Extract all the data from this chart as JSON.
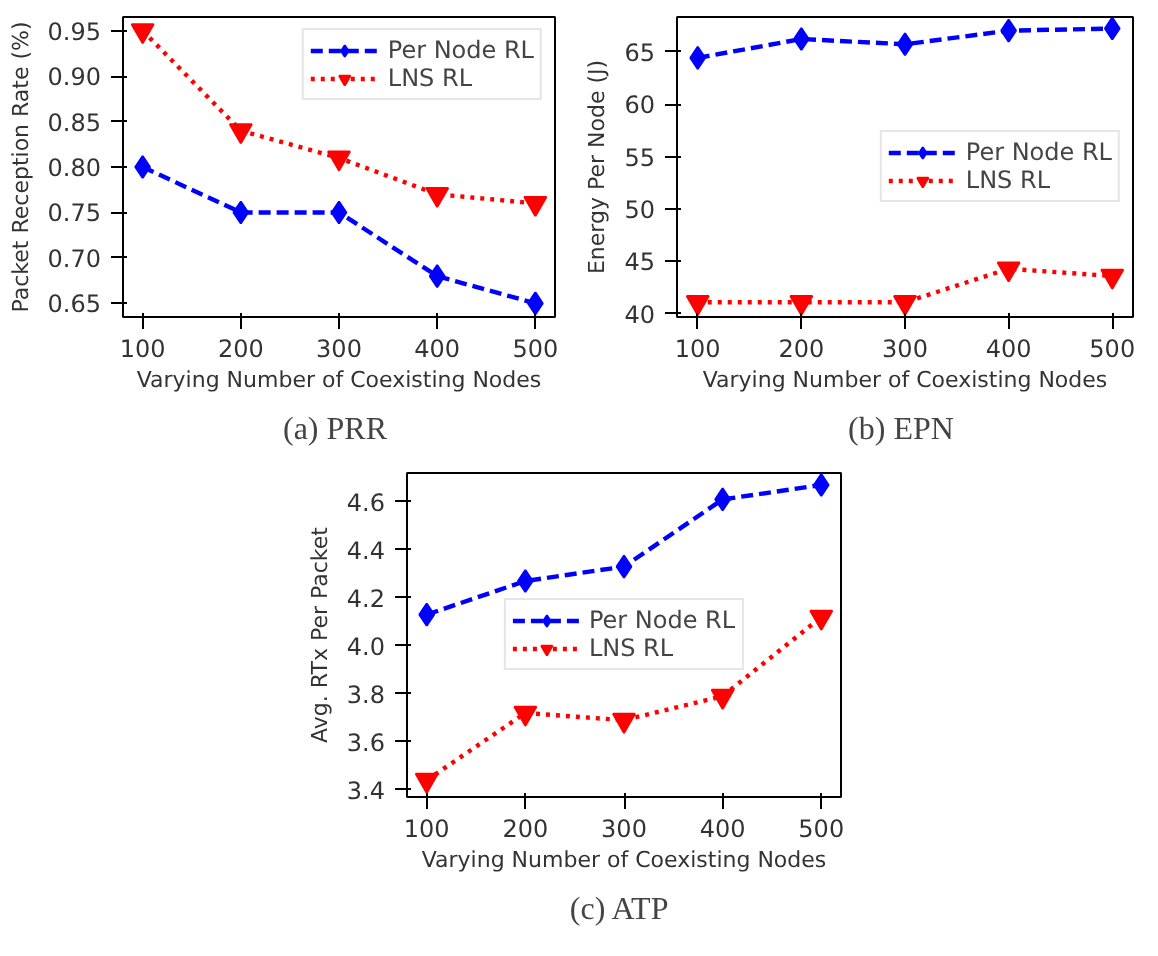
{
  "chart_data": [
    {
      "type": "line",
      "title": "(a)  PRR",
      "xlabel": "Varying Number of Coexisting Nodes",
      "ylabel": "Packet Reception Rate (%)",
      "x": [
        100,
        200,
        300,
        400,
        500
      ],
      "xlim": [
        80,
        520
      ],
      "xticks": [
        100,
        200,
        300,
        400,
        500
      ],
      "ylim": [
        0.635,
        0.965
      ],
      "yticks": [
        {
          "value": 0.65,
          "label": "0.65"
        },
        {
          "value": 0.7,
          "label": "0.70"
        },
        {
          "value": 0.75,
          "label": "0.75"
        },
        {
          "value": 0.8,
          "label": "0.80"
        },
        {
          "value": 0.85,
          "label": "0.85"
        },
        {
          "value": 0.9,
          "label": "0.90"
        },
        {
          "value": 0.95,
          "label": "0.95"
        }
      ],
      "legend": "top right",
      "grid": false,
      "series": [
        {
          "name": "Per Node RL",
          "color": "#0000ff",
          "marker": "diamond",
          "line_style": "dashed",
          "values": [
            0.8,
            0.75,
            0.75,
            0.68,
            0.65
          ]
        },
        {
          "name": "LNS RL",
          "color": "#ff0000",
          "marker": "triangle",
          "line_style": "dotted",
          "values": [
            0.95,
            0.84,
            0.81,
            0.77,
            0.76
          ]
        }
      ]
    },
    {
      "type": "line",
      "title": "(b)  EPN",
      "xlabel": "Varying Number of Coexisting Nodes",
      "ylabel": "Energy Per Node (J)",
      "x": [
        100,
        200,
        300,
        400,
        500
      ],
      "xlim": [
        80,
        520
      ],
      "xticks": [
        100,
        200,
        300,
        400,
        500
      ],
      "ylim": [
        39.7,
        68.3
      ],
      "yticks": [
        40,
        45,
        50,
        55,
        60,
        65
      ],
      "legend": "right",
      "grid": false,
      "series": [
        {
          "name": "Per Node RL",
          "color": "#0000ff",
          "marker": "diamond",
          "line_style": "dashed",
          "values": [
            64.4,
            66.2,
            65.7,
            67.0,
            67.2
          ]
        },
        {
          "name": "LNS RL",
          "color": "#ff0000",
          "marker": "triangle",
          "line_style": "dotted",
          "values": [
            41.1,
            41.1,
            41.1,
            44.3,
            43.6
          ]
        }
      ]
    },
    {
      "type": "line",
      "title": "(c)  ATP",
      "xlabel": "Varying Number of Coexisting Nodes",
      "ylabel": "Avg. RTx Per Packet",
      "x": [
        100,
        200,
        300,
        400,
        500
      ],
      "xlim": [
        80,
        520
      ],
      "xticks": [
        100,
        200,
        300,
        400,
        500
      ],
      "ylim": [
        3.37,
        4.72
      ],
      "yticks": [
        {
          "value": 3.4,
          "label": "3.4"
        },
        {
          "value": 3.6,
          "label": "3.6"
        },
        {
          "value": 3.8,
          "label": "3.8"
        },
        {
          "value": 4.0,
          "label": "4.0"
        },
        {
          "value": 4.2,
          "label": "4.2"
        },
        {
          "value": 4.4,
          "label": "4.4"
        },
        {
          "value": 4.6,
          "label": "4.6"
        }
      ],
      "legend": "center",
      "grid": false,
      "series": [
        {
          "name": "Per Node RL",
          "color": "#0000ff",
          "marker": "diamond",
          "line_style": "dashed",
          "values": [
            4.13,
            4.27,
            4.33,
            4.61,
            4.67
          ]
        },
        {
          "name": "LNS RL",
          "color": "#ff0000",
          "marker": "triangle",
          "line_style": "dotted",
          "values": [
            3.44,
            3.72,
            3.69,
            3.79,
            4.12
          ]
        }
      ]
    }
  ]
}
